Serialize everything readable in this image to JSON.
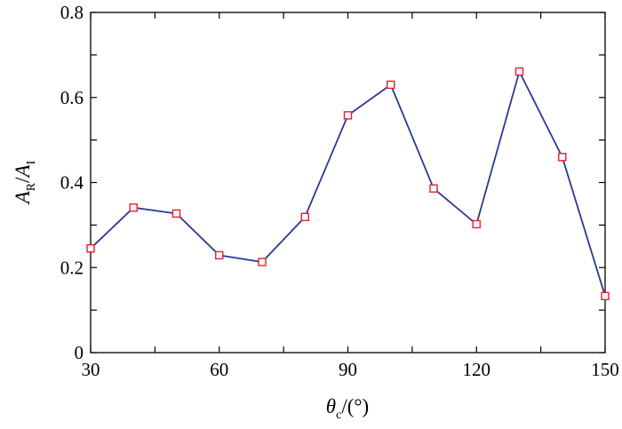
{
  "chart_data": {
    "type": "line",
    "title": "",
    "xlabel": {
      "main": "θ",
      "sub": "c",
      "unit": "/(°)"
    },
    "ylabel": {
      "a1": "A",
      "s1": "R",
      "slash": "/",
      "a2": "A",
      "s2": "I"
    },
    "xlim": [
      30,
      150
    ],
    "ylim": [
      0,
      0.8
    ],
    "xticks": [
      "30",
      "60",
      "90",
      "120",
      "150"
    ],
    "yticks": [
      "0",
      "0.2",
      "0.4",
      "0.6",
      "0.8"
    ],
    "grid": false,
    "legend": "none",
    "line_color": "#2b3990",
    "marker_color": "#e8202a",
    "marker": "square",
    "series": [
      {
        "x": [
          30,
          40,
          50,
          60,
          70,
          80,
          90,
          100,
          110,
          120,
          130,
          140,
          150
        ],
        "y": [
          0.245,
          0.341,
          0.327,
          0.229,
          0.213,
          0.319,
          0.558,
          0.63,
          0.386,
          0.302,
          0.661,
          0.46,
          0.133
        ]
      }
    ]
  }
}
